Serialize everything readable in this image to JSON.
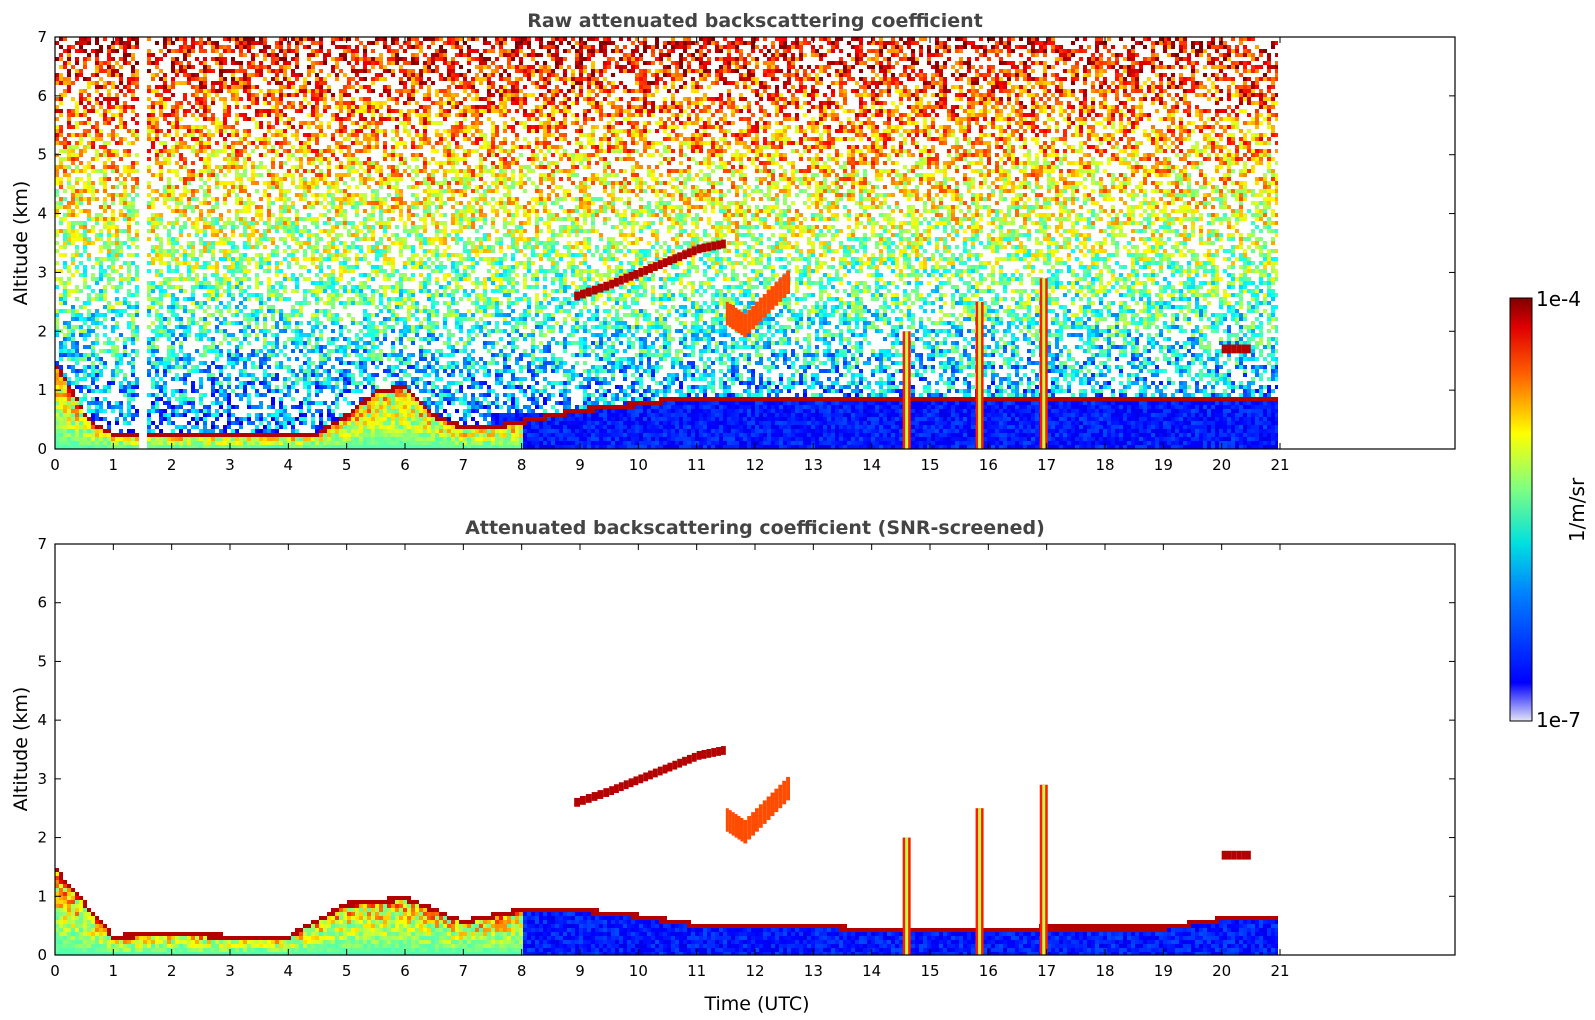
{
  "chart_data": [
    {
      "type": "heatmap",
      "title": "Raw attenuated backscattering coefficient",
      "xlabel": "",
      "ylabel": "Altitude (km)",
      "xlim": [
        0,
        24
      ],
      "ylim": [
        0,
        7
      ],
      "x_ticks": [
        "0",
        "1",
        "2",
        "3",
        "4",
        "5",
        "6",
        "7",
        "8",
        "9",
        "10",
        "11",
        "12",
        "13",
        "14",
        "15",
        "16",
        "17",
        "18",
        "19",
        "20",
        "21"
      ],
      "y_ticks": [
        "0",
        "1",
        "2",
        "3",
        "4",
        "5",
        "6",
        "7"
      ],
      "data_end_time": 21,
      "data_gap_time": [
        1.45,
        1.55
      ],
      "colormap": "jet",
      "features": [
        {
          "kind": "boundary_layer_top",
          "time": [
            0,
            0.3,
            0.6,
            1.0,
            1.5,
            2.5,
            3.5,
            4.5,
            5.0,
            5.5,
            6.0,
            6.5,
            7.0,
            7.5,
            8.0,
            9.0,
            10.0,
            10.7
          ],
          "altitude": [
            1.5,
            1.0,
            0.5,
            0.3,
            0.3,
            0.25,
            0.25,
            0.3,
            0.6,
            1.0,
            1.1,
            0.6,
            0.4,
            0.4,
            0.5,
            0.7,
            0.8,
            0.9
          ]
        },
        {
          "kind": "elevated_layer",
          "time": [
            8.9,
            9.5,
            10.0,
            10.5,
            11.0,
            11.5
          ],
          "altitude": [
            2.6,
            2.8,
            3.0,
            3.2,
            3.4,
            3.5
          ]
        },
        {
          "kind": "aerosol_plume",
          "time": [
            11.5,
            11.8,
            12.2,
            12.6
          ],
          "altitude": [
            2.3,
            2.1,
            2.5,
            2.9
          ]
        },
        {
          "kind": "vertical_column",
          "time": 14.6,
          "altitude_top": 2.0
        },
        {
          "kind": "vertical_column",
          "time": 15.85,
          "altitude_top": 2.5
        },
        {
          "kind": "vertical_column",
          "time": 16.95,
          "altitude_top": 2.9
        },
        {
          "kind": "elevated_layer",
          "time": [
            20.0,
            20.5
          ],
          "altitude": [
            1.7,
            1.7
          ]
        }
      ]
    },
    {
      "type": "heatmap",
      "title": "Attenuated backscattering coefficient (SNR-screened)",
      "xlabel": "Time (UTC)",
      "ylabel": "Altitude (km)",
      "xlim": [
        0,
        24
      ],
      "ylim": [
        0,
        7
      ],
      "x_ticks": [
        "0",
        "1",
        "2",
        "3",
        "4",
        "5",
        "6",
        "7",
        "8",
        "9",
        "10",
        "11",
        "12",
        "13",
        "14",
        "15",
        "16",
        "17",
        "18",
        "19",
        "20",
        "21"
      ],
      "y_ticks": [
        "0",
        "1",
        "2",
        "3",
        "4",
        "5",
        "6",
        "7"
      ],
      "data_end_time": 21,
      "colormap": "jet",
      "features": [
        {
          "kind": "boundary_layer_top",
          "time": [
            0,
            1,
            2,
            3,
            4,
            5,
            6,
            7,
            8,
            9,
            10,
            11,
            12,
            13,
            14,
            15,
            16,
            17,
            18,
            19,
            20,
            21
          ],
          "altitude": [
            1.5,
            0.35,
            0.4,
            0.35,
            0.35,
            0.9,
            1.0,
            0.6,
            0.8,
            0.8,
            0.7,
            0.55,
            0.55,
            0.55,
            0.45,
            0.45,
            0.45,
            0.5,
            0.5,
            0.5,
            0.65,
            0.7
          ]
        },
        {
          "kind": "elevated_layer",
          "time": [
            8.9,
            9.5,
            10.0,
            10.5,
            11.0,
            11.5
          ],
          "altitude": [
            2.6,
            2.8,
            3.0,
            3.2,
            3.4,
            3.5
          ]
        },
        {
          "kind": "aerosol_plume",
          "time": [
            11.5,
            11.8,
            12.2,
            12.6
          ],
          "altitude": [
            2.3,
            2.1,
            2.5,
            2.9
          ]
        },
        {
          "kind": "vertical_column",
          "time": 14.6,
          "altitude_top": 2.0
        },
        {
          "kind": "vertical_column",
          "time": 15.85,
          "altitude_top": 2.5
        },
        {
          "kind": "vertical_column",
          "time": 16.95,
          "altitude_top": 2.9
        },
        {
          "kind": "elevated_layer",
          "time": [
            20.0,
            20.5
          ],
          "altitude": [
            1.7,
            1.7
          ]
        }
      ]
    }
  ],
  "colorbar": {
    "label": "1/m/sr",
    "max_label": "1e-4",
    "min_label": "1e-7",
    "scale": "log",
    "colormap": "jet"
  }
}
